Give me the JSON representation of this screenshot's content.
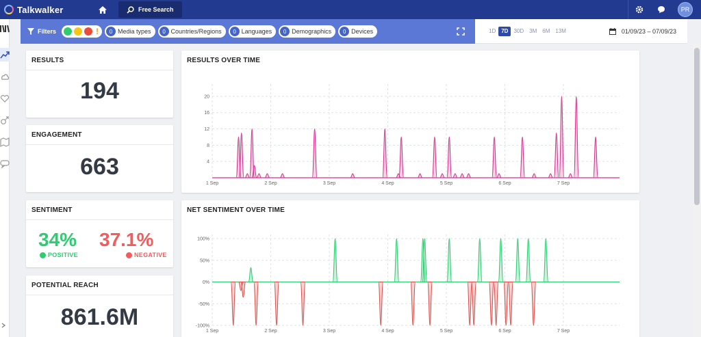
{
  "app": {
    "brand": "Talkwalker",
    "search_tab_label": "Free Search",
    "user_initials": "PR"
  },
  "filters": {
    "label": "Filters",
    "pills": [
      {
        "count": "0",
        "label": "Media types"
      },
      {
        "count": "0",
        "label": "Countries/Regions"
      },
      {
        "count": "0",
        "label": "Languages"
      },
      {
        "count": "0",
        "label": "Demographics"
      },
      {
        "count": "0",
        "label": "Devices"
      }
    ],
    "sentiment_colors": {
      "positive": "#2ecc71",
      "neutral": "#f5c518",
      "negative": "#e74c3c",
      "alert": "#f39c12"
    }
  },
  "date": {
    "ranges": [
      "1D",
      "7D",
      "30D",
      "3M",
      "6M",
      "13M"
    ],
    "active_range": "7D",
    "value": "01/09/23 – 07/09/23"
  },
  "results": {
    "title": "RESULTS",
    "value": "194"
  },
  "engagement": {
    "title": "ENGAGEMENT",
    "value": "663"
  },
  "sentiment": {
    "title": "SENTIMENT",
    "positive_value": "34%",
    "positive_label": "POSITIVE",
    "positive_color": "#2ecc71",
    "negative_value": "37.1%",
    "negative_label": "NEGATIVE",
    "negative_color": "#f25c5c"
  },
  "reach": {
    "title": "POTENTIAL REACH",
    "value": "861.6M"
  },
  "chart_data": [
    {
      "title": "RESULTS OVER TIME",
      "type": "area",
      "x_tick_labels": [
        "1 Sep",
        "2 Sep",
        "3 Sep",
        "4 Sep",
        "5 Sep",
        "6 Sep",
        "7 Sep"
      ],
      "y_tick_labels": [
        "4",
        "8",
        "12",
        "16",
        "20"
      ],
      "ylim": [
        0,
        22
      ],
      "grid": true,
      "color": "#d6338f",
      "x_unit": "days since 1 Sep 00:00",
      "peaks": [
        {
          "x": 0.45,
          "y": 10
        },
        {
          "x": 0.5,
          "y": 11
        },
        {
          "x": 0.6,
          "y": 1
        },
        {
          "x": 0.68,
          "y": 12
        },
        {
          "x": 0.72,
          "y": 3
        },
        {
          "x": 0.8,
          "y": 1
        },
        {
          "x": 0.94,
          "y": 1
        },
        {
          "x": 1.2,
          "y": 1
        },
        {
          "x": 1.75,
          "y": 12
        },
        {
          "x": 2.4,
          "y": 1
        },
        {
          "x": 2.95,
          "y": 12
        },
        {
          "x": 3.18,
          "y": 1
        },
        {
          "x": 3.23,
          "y": 10
        },
        {
          "x": 3.55,
          "y": 1
        },
        {
          "x": 3.8,
          "y": 10
        },
        {
          "x": 3.93,
          "y": 1
        },
        {
          "x": 4.05,
          "y": 10
        },
        {
          "x": 4.15,
          "y": 1
        },
        {
          "x": 4.27,
          "y": 1
        },
        {
          "x": 4.38,
          "y": 1
        },
        {
          "x": 4.82,
          "y": 10
        },
        {
          "x": 4.9,
          "y": 1
        },
        {
          "x": 5.3,
          "y": 10
        },
        {
          "x": 5.5,
          "y": 1
        },
        {
          "x": 5.78,
          "y": 1
        },
        {
          "x": 5.88,
          "y": 11
        },
        {
          "x": 5.97,
          "y": 20
        },
        {
          "x": 6.12,
          "y": 1
        },
        {
          "x": 6.22,
          "y": 20
        },
        {
          "x": 6.55,
          "y": 10
        }
      ]
    },
    {
      "title": "NET SENTIMENT OVER TIME",
      "type": "area",
      "x_tick_labels": [
        "1 Sep",
        "2 Sep",
        "3 Sep",
        "4 Sep",
        "5 Sep",
        "6 Sep",
        "7 Sep"
      ],
      "y_tick_labels": [
        "100%",
        "50%",
        "0%",
        "-50%",
        "-100%"
      ],
      "ylim": [
        -100,
        100
      ],
      "grid": true,
      "positive_color": "#2ecc71",
      "negative_color": "#d9534f",
      "x_unit": "days since 1 Sep 00:00",
      "peaks": [
        {
          "x": 0.36,
          "y": -100
        },
        {
          "x": 0.49,
          "y": -20
        },
        {
          "x": 0.53,
          "y": -35
        },
        {
          "x": 0.66,
          "y": 33
        },
        {
          "x": 0.75,
          "y": -100
        },
        {
          "x": 1.1,
          "y": -100
        },
        {
          "x": 1.55,
          "y": -100
        },
        {
          "x": 2.1,
          "y": 100
        },
        {
          "x": 2.88,
          "y": -100
        },
        {
          "x": 3.15,
          "y": 100
        },
        {
          "x": 3.43,
          "y": -100
        },
        {
          "x": 3.6,
          "y": 100
        },
        {
          "x": 3.63,
          "y": 100
        },
        {
          "x": 3.72,
          "y": -100
        },
        {
          "x": 4.05,
          "y": 100
        },
        {
          "x": 4.4,
          "y": -100
        },
        {
          "x": 4.47,
          "y": -100
        },
        {
          "x": 4.57,
          "y": 100
        },
        {
          "x": 4.77,
          "y": -100
        },
        {
          "x": 4.85,
          "y": -100
        },
        {
          "x": 4.93,
          "y": 100
        },
        {
          "x": 5.02,
          "y": -100
        },
        {
          "x": 5.1,
          "y": -100
        },
        {
          "x": 5.22,
          "y": 100
        },
        {
          "x": 5.4,
          "y": 100
        },
        {
          "x": 5.49,
          "y": -100
        },
        {
          "x": 5.7,
          "y": 100
        }
      ]
    }
  ]
}
